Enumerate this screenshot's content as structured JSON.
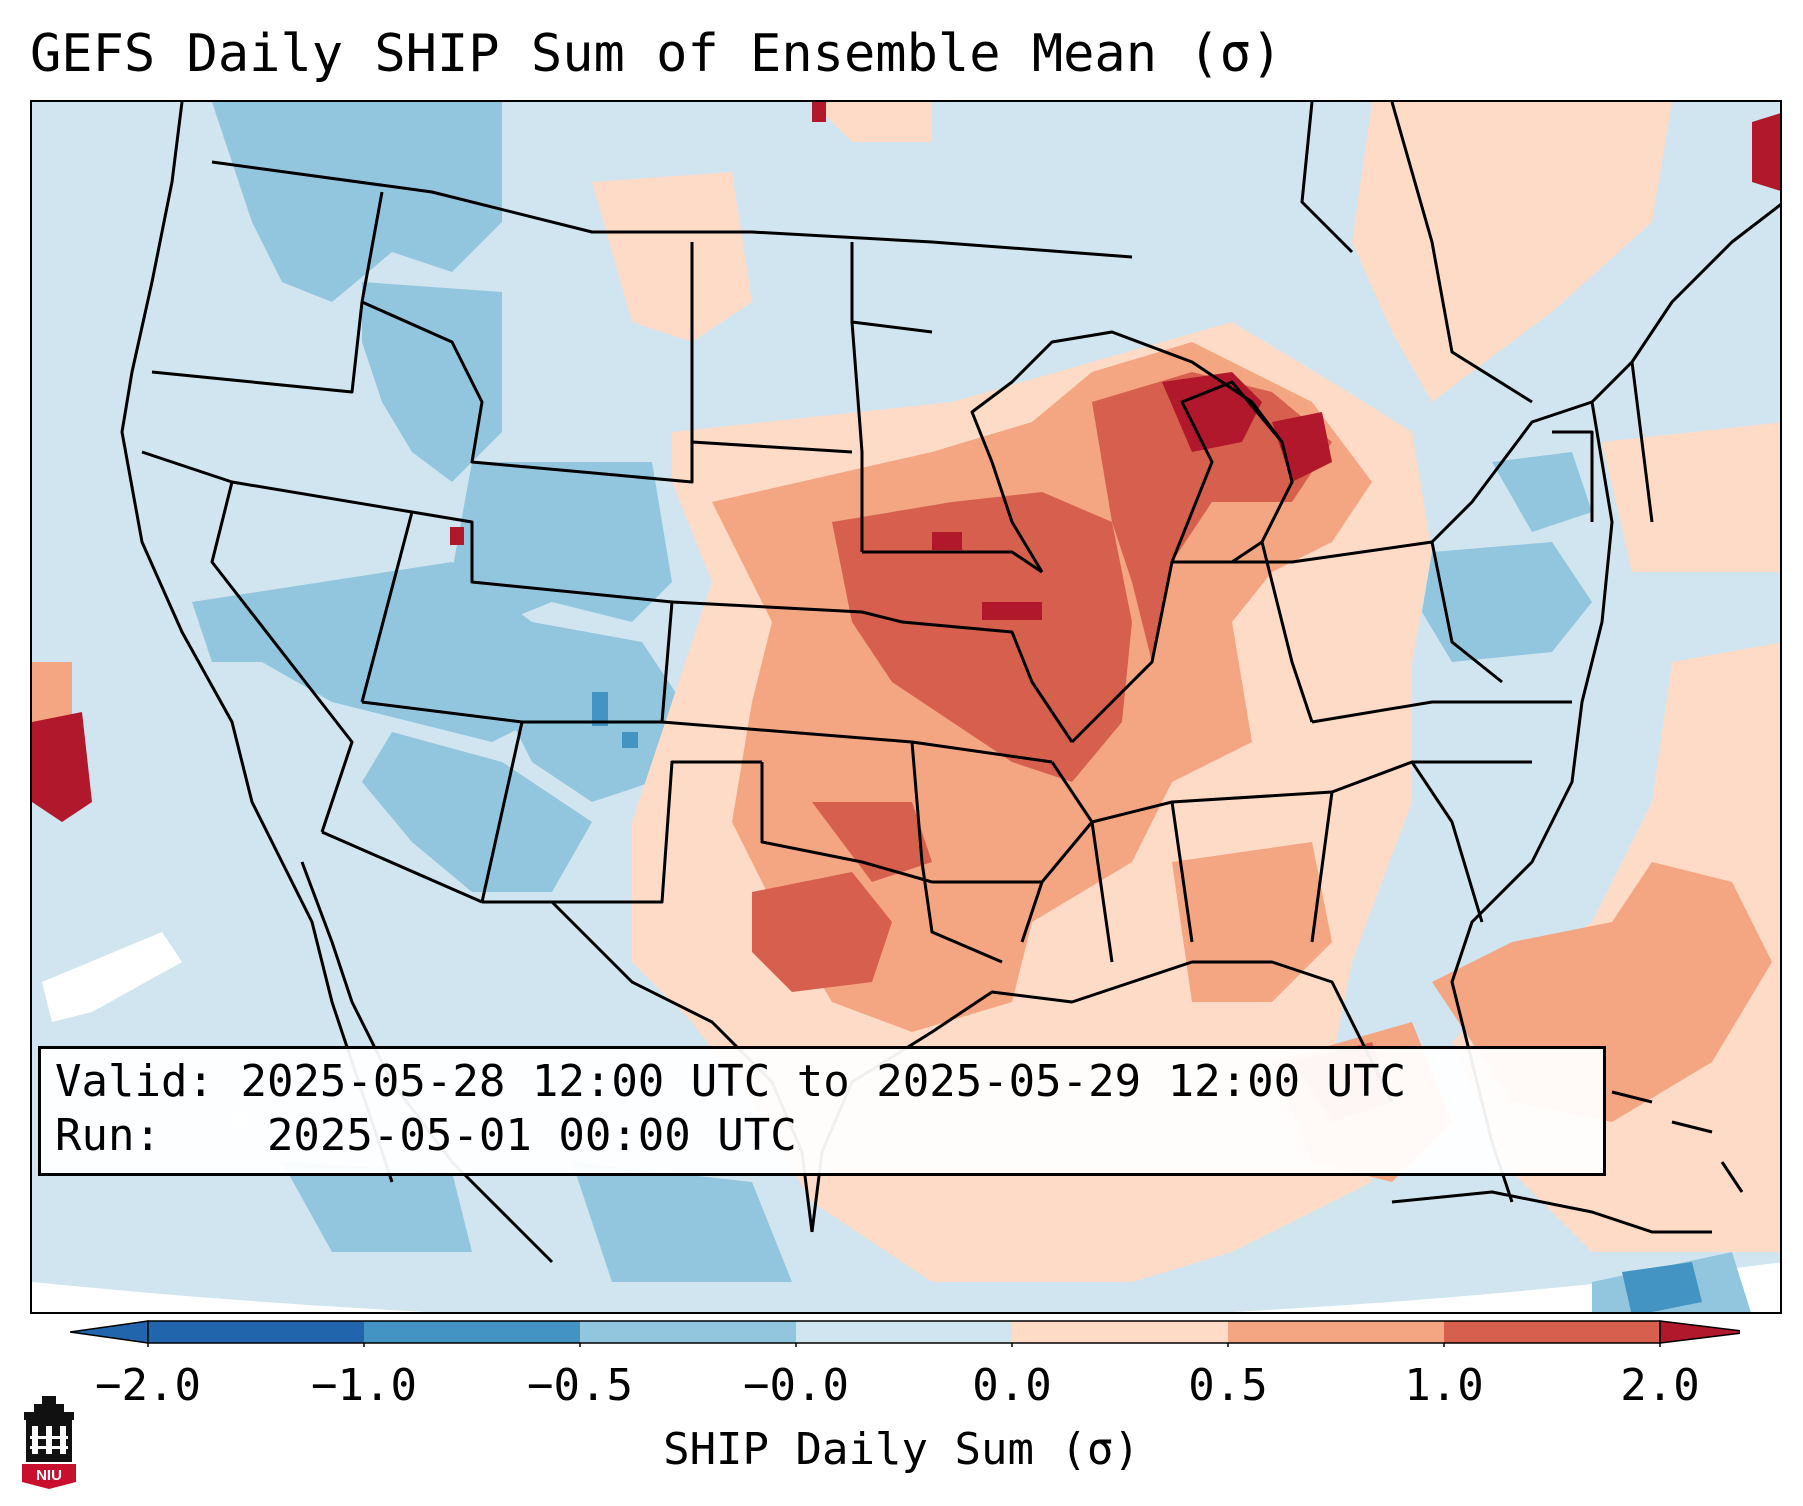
{
  "title": "GEFS Daily SHIP Sum of Ensemble Mean (σ)",
  "info": {
    "valid_label": "Valid:",
    "valid_value": "2025-05-28 12:00 UTC to 2025-05-29 12:00 UTC",
    "run_label": "Run:",
    "run_value": "2025-05-01 00:00 UTC"
  },
  "colorbar": {
    "label": "SHIP Daily Sum (σ)",
    "ticks": [
      "−2.0",
      "−1.0",
      "−0.5",
      "−0.0",
      "0.0",
      "0.5",
      "1.0",
      "2.0"
    ],
    "colors": [
      "#2166ac",
      "#4393c3",
      "#92c5de",
      "#d1e5f0",
      "#fddbc7",
      "#f4a582",
      "#d6604d",
      "#b2182b"
    ]
  },
  "logo": {
    "text": "NIU",
    "color": "#c8102e"
  }
}
